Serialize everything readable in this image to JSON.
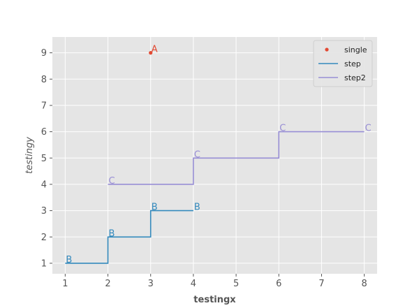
{
  "chart_data": {
    "type": "line",
    "title": "",
    "xlabel": "testingx",
    "ylabel": "testingy",
    "xlim": [
      0.7,
      8.3
    ],
    "ylim": [
      0.6,
      9.6
    ],
    "xticks": [
      1,
      2,
      3,
      4,
      5,
      6,
      7,
      8
    ],
    "yticks": [
      1,
      2,
      3,
      4,
      5,
      6,
      7,
      8,
      9
    ],
    "grid": true,
    "legend_position": "top-right",
    "series": [
      {
        "name": "single",
        "kind": "scatter",
        "color": "#e24a33",
        "points": [
          {
            "x": 3,
            "y": 9,
            "label": "A"
          }
        ]
      },
      {
        "name": "step",
        "kind": "step",
        "color": "#348abd",
        "points": [
          {
            "x": 1,
            "y": 1,
            "label": "B"
          },
          {
            "x": 2,
            "y": 2,
            "label": "B"
          },
          {
            "x": 3,
            "y": 3,
            "label": "B"
          },
          {
            "x": 4,
            "y": 3,
            "label": "B"
          }
        ]
      },
      {
        "name": "step2",
        "kind": "step",
        "color": "#988ed5",
        "points": [
          {
            "x": 2,
            "y": 4,
            "label": "C"
          },
          {
            "x": 4,
            "y": 5,
            "label": "C"
          },
          {
            "x": 6,
            "y": 6,
            "label": "C"
          },
          {
            "x": 8,
            "y": 6,
            "label": "C"
          }
        ]
      }
    ]
  }
}
